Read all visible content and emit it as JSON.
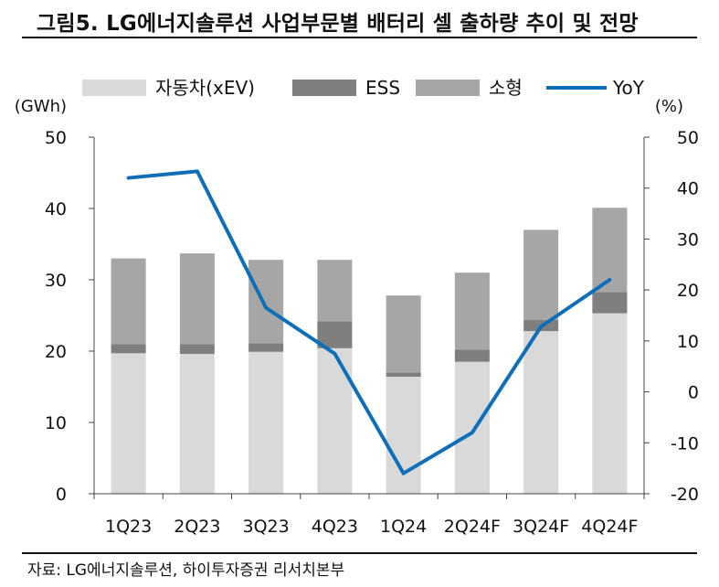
{
  "title": "그림5. LG에너지솔루션 사업부문별 배터리 셀 출하량 추이 및 전망",
  "source": "자료: LG에너지솔루션, 하이투자증권 리서치본부",
  "chart_data": {
    "type": "bar",
    "stacked": true,
    "categories": [
      "1Q23",
      "2Q23",
      "3Q23",
      "4Q23",
      "1Q24",
      "2Q24F",
      "3Q24F",
      "4Q24F"
    ],
    "series": [
      {
        "name": "자동차(xEV)",
        "color": "#d9d9d9",
        "axis": "left",
        "values": [
          19.7,
          19.6,
          19.9,
          20.4,
          16.4,
          18.5,
          22.8,
          25.3
        ]
      },
      {
        "name": "ESS",
        "color": "#7f7f7f",
        "axis": "left",
        "values": [
          1.3,
          1.4,
          1.2,
          3.8,
          0.6,
          1.7,
          1.6,
          3.0
        ]
      },
      {
        "name": "소형",
        "color": "#a6a6a6",
        "axis": "left",
        "values": [
          12.0,
          12.7,
          11.7,
          8.6,
          10.8,
          10.8,
          12.6,
          11.8
        ]
      }
    ],
    "line": {
      "name": "YoY",
      "color": "#0e6eb8",
      "axis": "right",
      "values": [
        42.0,
        43.3,
        16.5,
        7.5,
        -16.0,
        -8.0,
        12.8,
        22.0
      ]
    },
    "left_axis": {
      "label": "(GWh)",
      "min": 0,
      "max": 50,
      "ticks": [
        "0",
        "10",
        "20",
        "30",
        "40",
        "50"
      ]
    },
    "right_axis": {
      "label": "(%)",
      "min": -20,
      "max": 50,
      "ticks": [
        "-20",
        "-10",
        "0",
        "10",
        "20",
        "30",
        "40",
        "50"
      ]
    },
    "legend": [
      "자동차(xEV)",
      "ESS",
      "소형",
      "YoY"
    ]
  }
}
